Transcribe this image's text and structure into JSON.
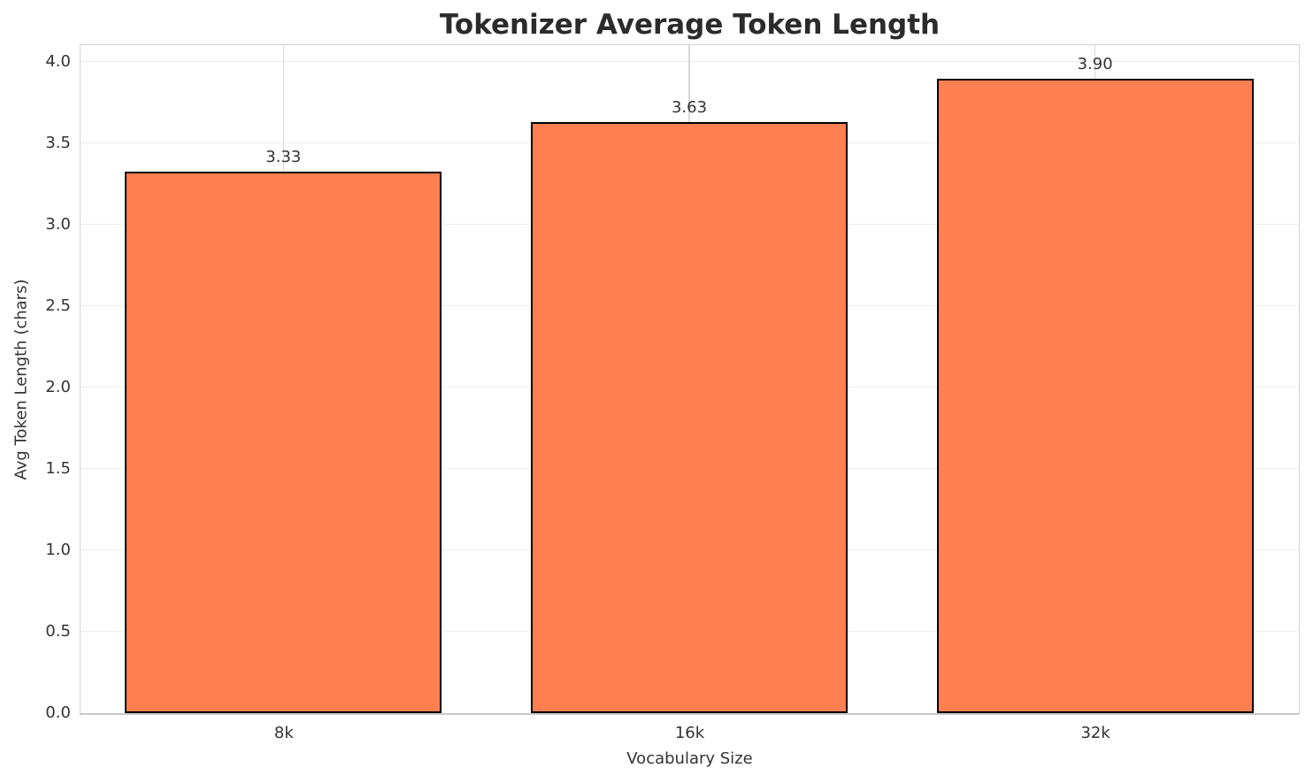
{
  "chart_data": {
    "type": "bar",
    "title": "Tokenizer Average Token Length",
    "xlabel": "Vocabulary Size",
    "ylabel": "Avg Token Length (chars)",
    "categories": [
      "8k",
      "16k",
      "32k"
    ],
    "values": [
      3.33,
      3.63,
      3.9
    ],
    "value_labels": [
      "3.33",
      "3.63",
      "3.90"
    ],
    "yticks": [
      0.0,
      0.5,
      1.0,
      1.5,
      2.0,
      2.5,
      3.0,
      3.5,
      4.0
    ],
    "ytick_labels": [
      "0.0",
      "0.5",
      "1.0",
      "1.5",
      "2.0",
      "2.5",
      "3.0",
      "3.5",
      "4.0"
    ],
    "ylim": [
      0,
      4.1
    ],
    "grid": true,
    "legend": false,
    "bar_color": "#ff7f50",
    "bar_edge_color": "#000000",
    "grid_color_horizontal": "#ededed",
    "grid_color_vertical": "#d8d8d8",
    "text_color": "#333333",
    "title_color": "#2b2b2b"
  }
}
